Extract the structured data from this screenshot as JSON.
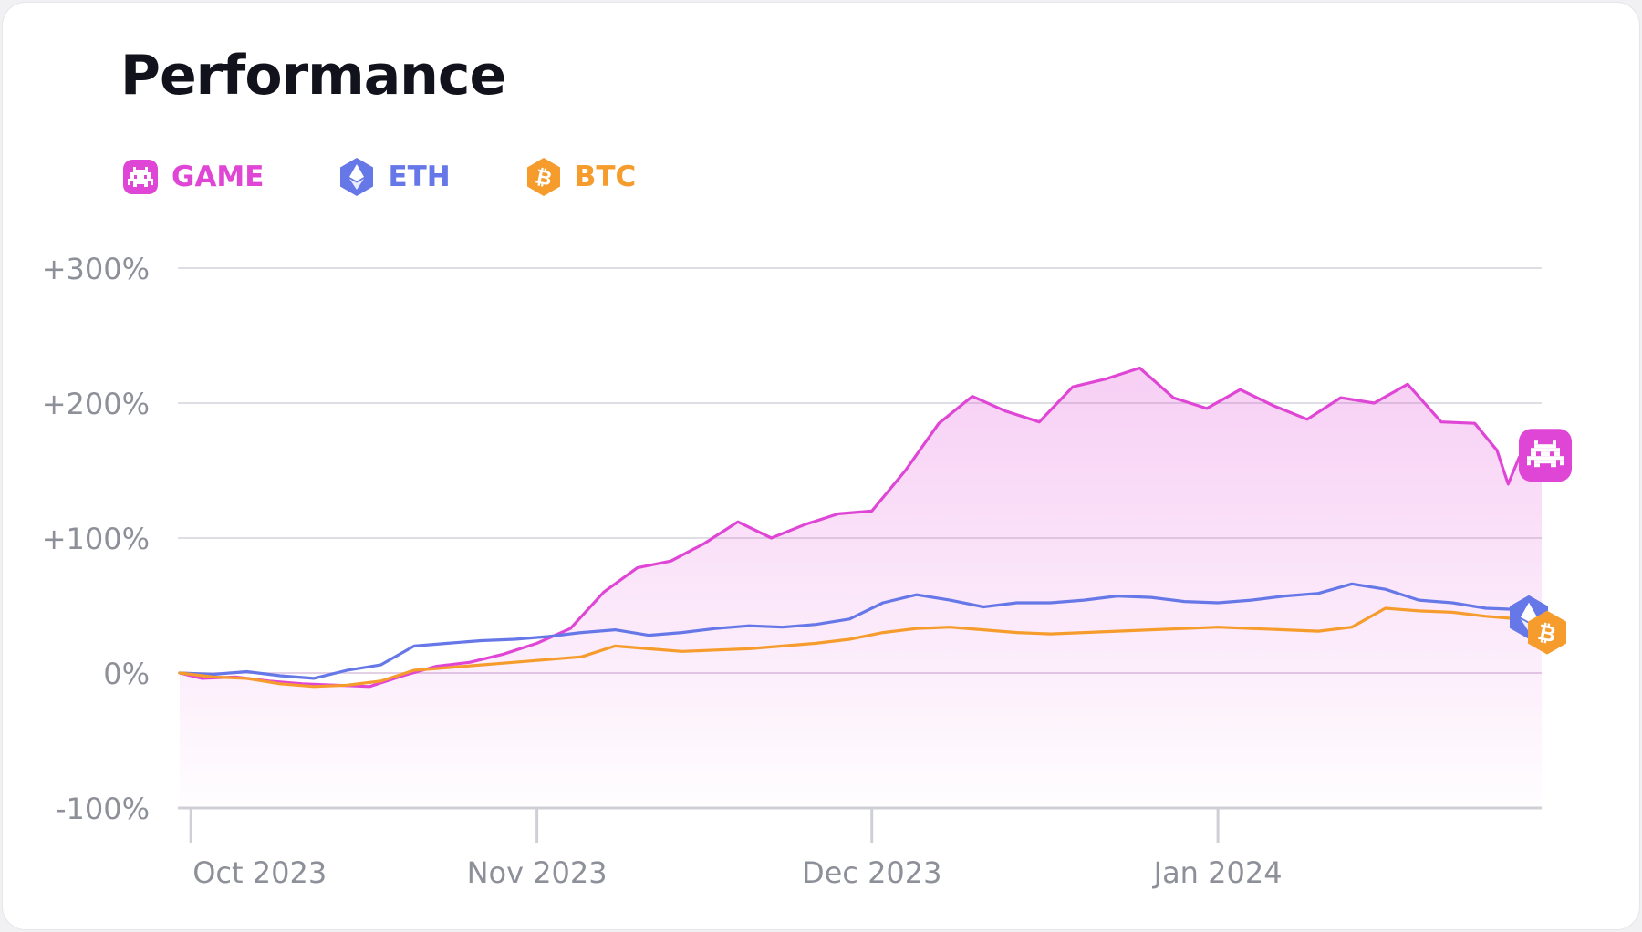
{
  "title": "Performance",
  "legend": [
    {
      "name": "GAME",
      "color": "#e046d6",
      "icon": "space-invader-icon"
    },
    {
      "name": "ETH",
      "color": "#6677e8",
      "icon": "ethereum-icon"
    },
    {
      "name": "BTC",
      "color": "#f59c2d",
      "icon": "bitcoin-icon"
    }
  ],
  "chart_data": {
    "type": "line",
    "x_axis": {
      "tick_labels": [
        "Oct 2023",
        "Nov 2023",
        "Dec 2023",
        "Jan 2024"
      ],
      "tick_dates": [
        "2023-10-01",
        "2023-11-01",
        "2023-12-01",
        "2024-01-01"
      ],
      "start_date": "2023-09-30",
      "end_date": "2024-01-30"
    },
    "y_axis": {
      "ticks": [
        300,
        200,
        100,
        0,
        -100
      ],
      "tick_labels": [
        "+300%",
        "+200%",
        "+100%",
        "0%",
        "-100%"
      ],
      "ylim": [
        -100,
        300
      ],
      "unit": "%"
    },
    "grid": true,
    "legend_position": "top-left",
    "series": [
      {
        "name": "GAME",
        "color": "#e046d6",
        "area_fill": true,
        "x": [
          "2023-09-30",
          "2023-10-02",
          "2023-10-05",
          "2023-10-08",
          "2023-10-11",
          "2023-10-14",
          "2023-10-17",
          "2023-10-20",
          "2023-10-23",
          "2023-10-26",
          "2023-10-29",
          "2023-11-01",
          "2023-11-04",
          "2023-11-07",
          "2023-11-10",
          "2023-11-13",
          "2023-11-16",
          "2023-11-19",
          "2023-11-22",
          "2023-11-25",
          "2023-11-28",
          "2023-12-01",
          "2023-12-04",
          "2023-12-07",
          "2023-12-10",
          "2023-12-13",
          "2023-12-16",
          "2023-12-19",
          "2023-12-22",
          "2023-12-25",
          "2023-12-28",
          "2023-12-31",
          "2024-01-03",
          "2024-01-06",
          "2024-01-09",
          "2024-01-12",
          "2024-01-15",
          "2024-01-18",
          "2024-01-21",
          "2024-01-24",
          "2024-01-26",
          "2024-01-27",
          "2024-01-28",
          "2024-01-30"
        ],
        "values": [
          0,
          -4,
          -3,
          -6,
          -8,
          -9,
          -10,
          -2,
          5,
          8,
          14,
          22,
          33,
          60,
          78,
          83,
          96,
          112,
          100,
          110,
          118,
          120,
          150,
          185,
          205,
          194,
          186,
          212,
          218,
          226,
          204,
          196,
          210,
          198,
          188,
          204,
          200,
          214,
          186,
          185,
          165,
          140,
          160,
          160
        ]
      },
      {
        "name": "ETH",
        "color": "#6677e8",
        "x": [
          "2023-09-30",
          "2023-10-03",
          "2023-10-06",
          "2023-10-09",
          "2023-10-12",
          "2023-10-15",
          "2023-10-18",
          "2023-10-21",
          "2023-10-24",
          "2023-10-27",
          "2023-10-30",
          "2023-11-02",
          "2023-11-05",
          "2023-11-08",
          "2023-11-11",
          "2023-11-14",
          "2023-11-17",
          "2023-11-20",
          "2023-11-23",
          "2023-11-26",
          "2023-11-29",
          "2023-12-02",
          "2023-12-05",
          "2023-12-08",
          "2023-12-11",
          "2023-12-14",
          "2023-12-17",
          "2023-12-20",
          "2023-12-23",
          "2023-12-26",
          "2023-12-29",
          "2024-01-01",
          "2024-01-04",
          "2024-01-07",
          "2024-01-10",
          "2024-01-13",
          "2024-01-16",
          "2024-01-19",
          "2024-01-22",
          "2024-01-25",
          "2024-01-28",
          "2024-01-30"
        ],
        "values": [
          0,
          -1,
          1,
          -2,
          -4,
          2,
          6,
          20,
          22,
          24,
          25,
          27,
          30,
          32,
          28,
          30,
          33,
          35,
          34,
          36,
          40,
          52,
          58,
          54,
          49,
          52,
          52,
          54,
          57,
          56,
          53,
          52,
          54,
          57,
          59,
          66,
          62,
          54,
          52,
          48,
          47,
          40
        ]
      },
      {
        "name": "BTC",
        "color": "#f59c2d",
        "x": [
          "2023-09-30",
          "2023-10-03",
          "2023-10-06",
          "2023-10-09",
          "2023-10-12",
          "2023-10-15",
          "2023-10-18",
          "2023-10-21",
          "2023-10-24",
          "2023-10-27",
          "2023-10-30",
          "2023-11-02",
          "2023-11-05",
          "2023-11-08",
          "2023-11-11",
          "2023-11-14",
          "2023-11-17",
          "2023-11-20",
          "2023-11-23",
          "2023-11-26",
          "2023-11-29",
          "2023-12-02",
          "2023-12-05",
          "2023-12-08",
          "2023-12-11",
          "2023-12-14",
          "2023-12-17",
          "2023-12-20",
          "2023-12-23",
          "2023-12-26",
          "2023-12-29",
          "2024-01-01",
          "2024-01-04",
          "2024-01-07",
          "2024-01-10",
          "2024-01-13",
          "2024-01-16",
          "2024-01-19",
          "2024-01-22",
          "2024-01-25",
          "2024-01-28",
          "2024-01-30"
        ],
        "values": [
          0,
          -3,
          -4,
          -8,
          -10,
          -9,
          -6,
          2,
          4,
          6,
          8,
          10,
          12,
          20,
          18,
          16,
          17,
          18,
          20,
          22,
          25,
          30,
          33,
          34,
          32,
          30,
          29,
          30,
          31,
          32,
          33,
          34,
          33,
          32,
          31,
          34,
          48,
          46,
          45,
          42,
          40,
          30
        ]
      }
    ]
  }
}
